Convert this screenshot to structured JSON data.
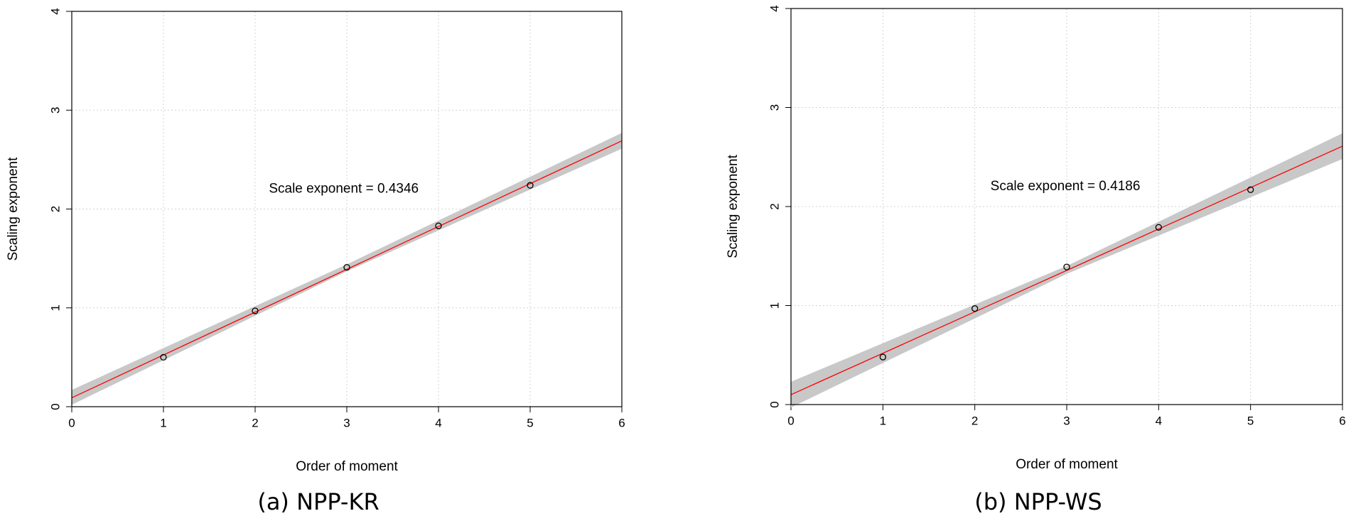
{
  "chart_data": [
    {
      "type": "scatter",
      "title": "(a) NPP-KR",
      "xlabel": "Order of moment",
      "ylabel": "Scaling exponent",
      "annotation": "Scale exponent = 0.4346",
      "x": [
        1,
        2,
        3,
        4,
        5
      ],
      "values": [
        0.5,
        0.97,
        1.41,
        1.83,
        2.24
      ],
      "color": "#000000",
      "fit": {
        "x": [
          0,
          6
        ],
        "values": [
          0.09,
          2.69
        ],
        "color": "#ff0000"
      },
      "band": {
        "x": [
          0,
          3,
          6
        ],
        "lower": [
          0.02,
          1.37,
          2.61
        ],
        "upper": [
          0.17,
          1.44,
          2.77
        ],
        "color": "#c8c8c8"
      },
      "xlim": [
        0,
        6
      ],
      "ylim": [
        0,
        4
      ],
      "xticks": [
        0,
        1,
        2,
        3,
        4,
        5,
        6
      ],
      "yticks": [
        0,
        1,
        2,
        3,
        4
      ],
      "grid": true
    },
    {
      "type": "scatter",
      "title": "(b) NPP-WS",
      "xlabel": "Order of moment",
      "ylabel": "Scaling exponent",
      "annotation": "Scale exponent = 0.4186",
      "x": [
        1,
        2,
        3,
        4,
        5
      ],
      "values": [
        0.48,
        0.97,
        1.39,
        1.79,
        2.17
      ],
      "color": "#000000",
      "fit": {
        "x": [
          0,
          6
        ],
        "values": [
          0.1,
          2.61
        ],
        "color": "#ff0000"
      },
      "band": {
        "x": [
          0,
          3,
          6
        ],
        "lower": [
          -0.03,
          1.32,
          2.48
        ],
        "upper": [
          0.23,
          1.4,
          2.74
        ],
        "color": "#c8c8c8"
      },
      "xlim": [
        0,
        6
      ],
      "ylim": [
        0,
        4
      ],
      "xticks": [
        0,
        1,
        2,
        3,
        4,
        5,
        6
      ],
      "yticks": [
        0,
        1,
        2,
        3,
        4
      ],
      "grid": true
    }
  ]
}
